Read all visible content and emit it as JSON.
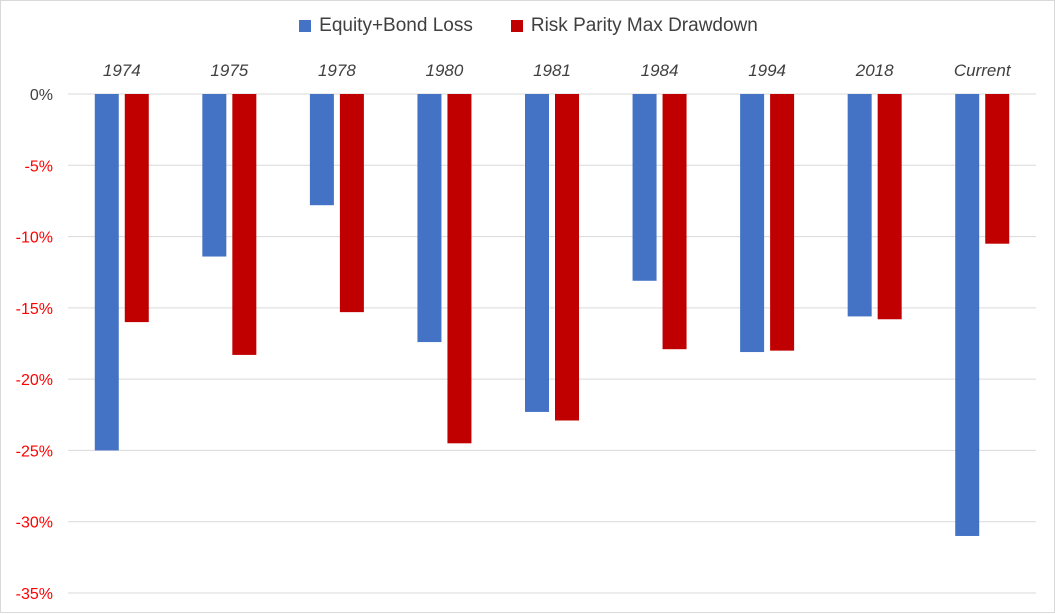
{
  "chart_data": {
    "type": "bar",
    "categories": [
      "1974",
      "1975",
      "1978",
      "1980",
      "1981",
      "1984",
      "1994",
      "2018",
      "Current"
    ],
    "series": [
      {
        "name": "Equity+Bond Loss",
        "color": "#4472C4",
        "values": [
          -25.0,
          -11.4,
          -7.8,
          -17.4,
          -22.3,
          -13.1,
          -18.1,
          -15.6,
          -31.0
        ]
      },
      {
        "name": "Risk Parity Max Drawdown",
        "color": "#C00000",
        "values": [
          -16.0,
          -18.3,
          -15.3,
          -24.5,
          -22.9,
          -17.9,
          -18.0,
          -15.8,
          -10.5
        ]
      }
    ],
    "ylim": [
      -35,
      0
    ],
    "yticks": [
      0,
      -5,
      -10,
      -15,
      -20,
      -25,
      -30,
      -35
    ],
    "ytick_labels": [
      "0%",
      "-5%",
      "-10%",
      "-15%",
      "-20%",
      "-25%",
      "-30%",
      "-35%"
    ],
    "ytick_label_colors": {
      "zero": "#404040",
      "negative": "#FF0000"
    },
    "grid": true,
    "legend_position": "top",
    "category_label_position": "top",
    "title": "",
    "xlabel": "",
    "ylabel": ""
  }
}
